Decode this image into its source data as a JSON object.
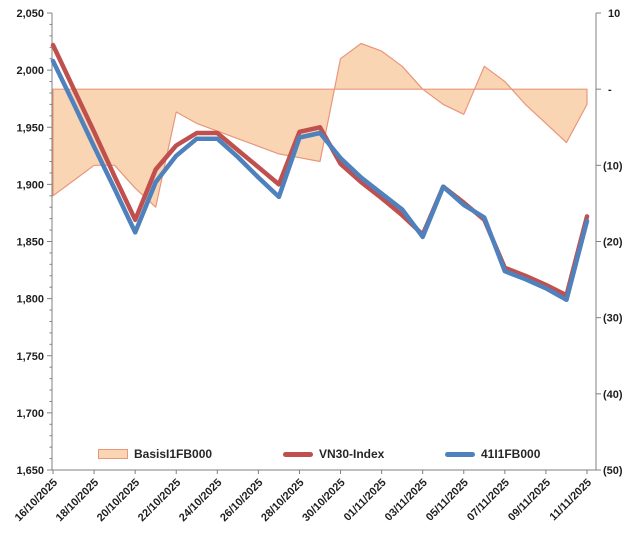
{
  "chart_data": {
    "type": "line",
    "title": "",
    "x": [
      "16/10/2025",
      "17/10/2025",
      "18/10/2025",
      "19/10/2025",
      "20/10/2025",
      "21/10/2025",
      "22/10/2025",
      "23/10/2025",
      "24/10/2025",
      "25/10/2025",
      "26/10/2025",
      "27/10/2025",
      "28/10/2025",
      "29/10/2025",
      "30/10/2025",
      "31/10/2025",
      "01/11/2025",
      "02/11/2025",
      "03/11/2025",
      "04/11/2025",
      "05/11/2025",
      "06/11/2025",
      "07/11/2025",
      "08/11/2025",
      "09/11/2025",
      "10/11/2025",
      "11/11/2025"
    ],
    "x_tick_labels": [
      "16/10/2025",
      "18/10/2025",
      "20/10/2025",
      "22/10/2025",
      "24/10/2025",
      "26/10/2025",
      "28/10/2025",
      "30/10/2025",
      "01/11/2025",
      "03/11/2025",
      "05/11/2025",
      "07/11/2025",
      "09/11/2025",
      "11/11/2025"
    ],
    "series": [
      {
        "name": "BasisI1FB000",
        "kind": "area",
        "axis": "right",
        "fill": "#FAD5B4",
        "stroke": "#E9967A",
        "values": [
          -14,
          -12,
          -10,
          -10,
          -13,
          -15.5,
          -3,
          -4.5,
          -5.5,
          -6.5,
          -7.5,
          -8.5,
          -9,
          -9.5,
          4,
          6,
          5,
          3,
          0,
          -2,
          -3.3,
          3,
          1,
          -2,
          -4.5,
          -7,
          -2
        ]
      },
      {
        "name": "VN30-Index",
        "kind": "line",
        "axis": "left",
        "stroke": "#C0504D",
        "values": [
          2022,
          1984,
          1946,
          1907,
          1869,
          1913,
          1934,
          1945,
          1945,
          1930,
          1915,
          1900,
          1946,
          1950,
          1918,
          1902,
          1888,
          1873,
          1856,
          1898,
          1884,
          1869,
          1827,
          1820,
          1812,
          1803,
          1872
        ]
      },
      {
        "name": "41I1FB000",
        "kind": "line",
        "axis": "left",
        "stroke": "#4F81BD",
        "values": [
          2008,
          1971,
          1933,
          1896,
          1858,
          1902,
          1925,
          1940,
          1940,
          1924,
          1906,
          1889,
          1941,
          1945,
          1923,
          1906,
          1892,
          1878,
          1854,
          1898,
          1882,
          1871,
          1824,
          1817,
          1809,
          1799,
          1868
        ]
      }
    ],
    "left_axis": {
      "min": 1650,
      "max": 2050,
      "step": 50,
      "labels": [
        "1,650",
        "1,700",
        "1,750",
        "1,800",
        "1,850",
        "1,900",
        "1,950",
        "2,000",
        "2,050"
      ]
    },
    "right_axis": {
      "min": -50,
      "max": 10,
      "step": 10,
      "labels_top_to_bottom": [
        "10",
        "-",
        "(10)",
        "(20)",
        "(30)",
        "(40)",
        "(50)"
      ]
    },
    "legend": [
      {
        "label": "BasisI1FB000",
        "swatch": "area",
        "color": "#FAD5B4"
      },
      {
        "label": "VN30-Index",
        "swatch": "line",
        "color": "#C0504D"
      },
      {
        "label": "41I1FB000",
        "swatch": "line",
        "color": "#4F81BD"
      }
    ],
    "grid": "off",
    "legend_position": "bottom"
  }
}
